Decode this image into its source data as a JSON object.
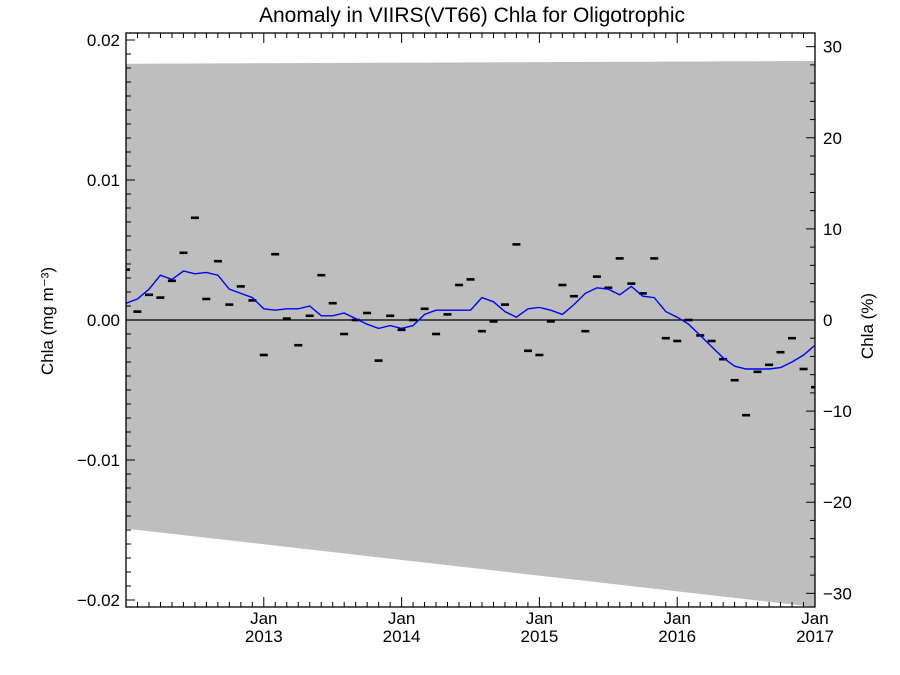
{
  "chart_data": {
    "type": "line",
    "title": "Anomaly in VIIRS(VT66) Chla for Oligotrophic",
    "ylabel_left": "Chla (mg m⁻³)",
    "ylabel_right": "Chla (%)",
    "ylim_left": [
      -0.0205,
      0.0205
    ],
    "ylim_right": [
      -31.5,
      31.5
    ],
    "xlim": [
      2012.0,
      2017.0
    ],
    "grid": false,
    "y_ticks_left": [
      {
        "value": 0.02,
        "label": "0.02"
      },
      {
        "value": 0.01,
        "label": "0.01"
      },
      {
        "value": 0.0,
        "label": "0.00"
      },
      {
        "value": -0.01,
        "label": "−0.01"
      },
      {
        "value": -0.02,
        "label": "−0.02"
      }
    ],
    "y_ticks_right": [
      {
        "value": 30,
        "label": "30"
      },
      {
        "value": 20,
        "label": "20"
      },
      {
        "value": 10,
        "label": "10"
      },
      {
        "value": 0,
        "label": "0"
      },
      {
        "value": -10,
        "label": "−10"
      },
      {
        "value": -20,
        "label": "−20"
      },
      {
        "value": -30,
        "label": "−30"
      }
    ],
    "x_ticks": [
      {
        "value": 2013.0,
        "month": "Jan",
        "year": "2013"
      },
      {
        "value": 2014.0,
        "month": "Jan",
        "year": "2014"
      },
      {
        "value": 2015.0,
        "month": "Jan",
        "year": "2015"
      },
      {
        "value": 2016.0,
        "month": "Jan",
        "year": "2016"
      },
      {
        "value": 2017.0,
        "month": "Jan",
        "year": "2017"
      }
    ],
    "band": {
      "color": "#bebebe",
      "upper": [
        [
          2012.0,
          0.0183
        ],
        [
          2017.0,
          0.0185
        ]
      ],
      "lower": [
        [
          2012.0,
          -0.0149
        ],
        [
          2017.0,
          -0.0205
        ]
      ]
    },
    "zero_line": 0.0,
    "series": [
      {
        "kind": "points",
        "color": "#000000",
        "x": [
          2012.0,
          2012.083,
          2012.167,
          2012.25,
          2012.333,
          2012.417,
          2012.5,
          2012.583,
          2012.667,
          2012.75,
          2012.833,
          2012.917,
          2013.0,
          2013.083,
          2013.167,
          2013.25,
          2013.333,
          2013.417,
          2013.5,
          2013.583,
          2013.667,
          2013.75,
          2013.833,
          2013.917,
          2014.0,
          2014.083,
          2014.167,
          2014.25,
          2014.333,
          2014.417,
          2014.5,
          2014.583,
          2014.667,
          2014.75,
          2014.833,
          2014.917,
          2015.0,
          2015.083,
          2015.167,
          2015.25,
          2015.333,
          2015.417,
          2015.5,
          2015.583,
          2015.667,
          2015.75,
          2015.833,
          2015.917,
          2016.0,
          2016.083,
          2016.167,
          2016.25,
          2016.333,
          2016.417,
          2016.5,
          2016.583,
          2016.667,
          2016.75,
          2016.833,
          2016.917,
          2017.0
        ],
        "y": [
          0.0036,
          0.0006,
          0.0018,
          0.0016,
          0.0028,
          0.0048,
          0.0073,
          0.0015,
          0.0042,
          0.0011,
          0.0024,
          0.0014,
          -0.0025,
          0.0047,
          0.0001,
          -0.0018,
          0.0003,
          0.0032,
          0.0012,
          -0.001,
          0.0,
          0.0005,
          -0.0029,
          0.0003,
          -0.0007,
          0.0,
          0.0008,
          -0.001,
          0.0004,
          0.0025,
          0.0029,
          -0.0008,
          -0.0001,
          0.0011,
          0.0054,
          -0.0022,
          -0.0025,
          -0.0001,
          0.0025,
          0.0017,
          -0.0008,
          0.0031,
          0.0023,
          0.0044,
          0.0026,
          0.0019,
          0.0044,
          -0.0013,
          -0.0015,
          0.0,
          -0.0011,
          -0.0015,
          -0.0028,
          -0.0043,
          -0.0068,
          -0.0037,
          -0.0032,
          -0.0023,
          -0.0013,
          -0.0035,
          -0.0048
        ]
      },
      {
        "kind": "line",
        "color": "#0000ff",
        "x": [
          2012.0,
          2012.083,
          2012.167,
          2012.25,
          2012.333,
          2012.417,
          2012.5,
          2012.583,
          2012.667,
          2012.75,
          2012.833,
          2012.917,
          2013.0,
          2013.083,
          2013.167,
          2013.25,
          2013.333,
          2013.417,
          2013.5,
          2013.583,
          2013.667,
          2013.75,
          2013.833,
          2013.917,
          2014.0,
          2014.083,
          2014.167,
          2014.25,
          2014.333,
          2014.417,
          2014.5,
          2014.583,
          2014.667,
          2014.75,
          2014.833,
          2014.917,
          2015.0,
          2015.083,
          2015.167,
          2015.25,
          2015.333,
          2015.417,
          2015.5,
          2015.583,
          2015.667,
          2015.75,
          2015.833,
          2015.917,
          2016.0,
          2016.083,
          2016.167,
          2016.25,
          2016.333,
          2016.417,
          2016.5,
          2016.583,
          2016.667,
          2016.75,
          2016.833,
          2016.917,
          2017.0
        ],
        "y": [
          0.0012,
          0.0015,
          0.0022,
          0.0032,
          0.0029,
          0.0035,
          0.0033,
          0.0034,
          0.0032,
          0.0022,
          0.0019,
          0.0016,
          0.0008,
          0.0007,
          0.0008,
          0.0008,
          0.001,
          0.0003,
          0.0003,
          0.0005,
          0.0001,
          -0.0003,
          -0.0006,
          -0.0004,
          -0.0006,
          -0.0004,
          0.0004,
          0.0007,
          0.0007,
          0.0007,
          0.0007,
          0.0016,
          0.0013,
          0.0006,
          0.0002,
          0.0008,
          0.0009,
          0.0007,
          0.0004,
          0.0011,
          0.0019,
          0.0023,
          0.0022,
          0.0018,
          0.0024,
          0.0017,
          0.0016,
          0.0006,
          0.0002,
          -0.0003,
          -0.0011,
          -0.0019,
          -0.0027,
          -0.0033,
          -0.0035,
          -0.0035,
          -0.0035,
          -0.0034,
          -0.003,
          -0.0025,
          -0.0018
        ]
      }
    ]
  }
}
